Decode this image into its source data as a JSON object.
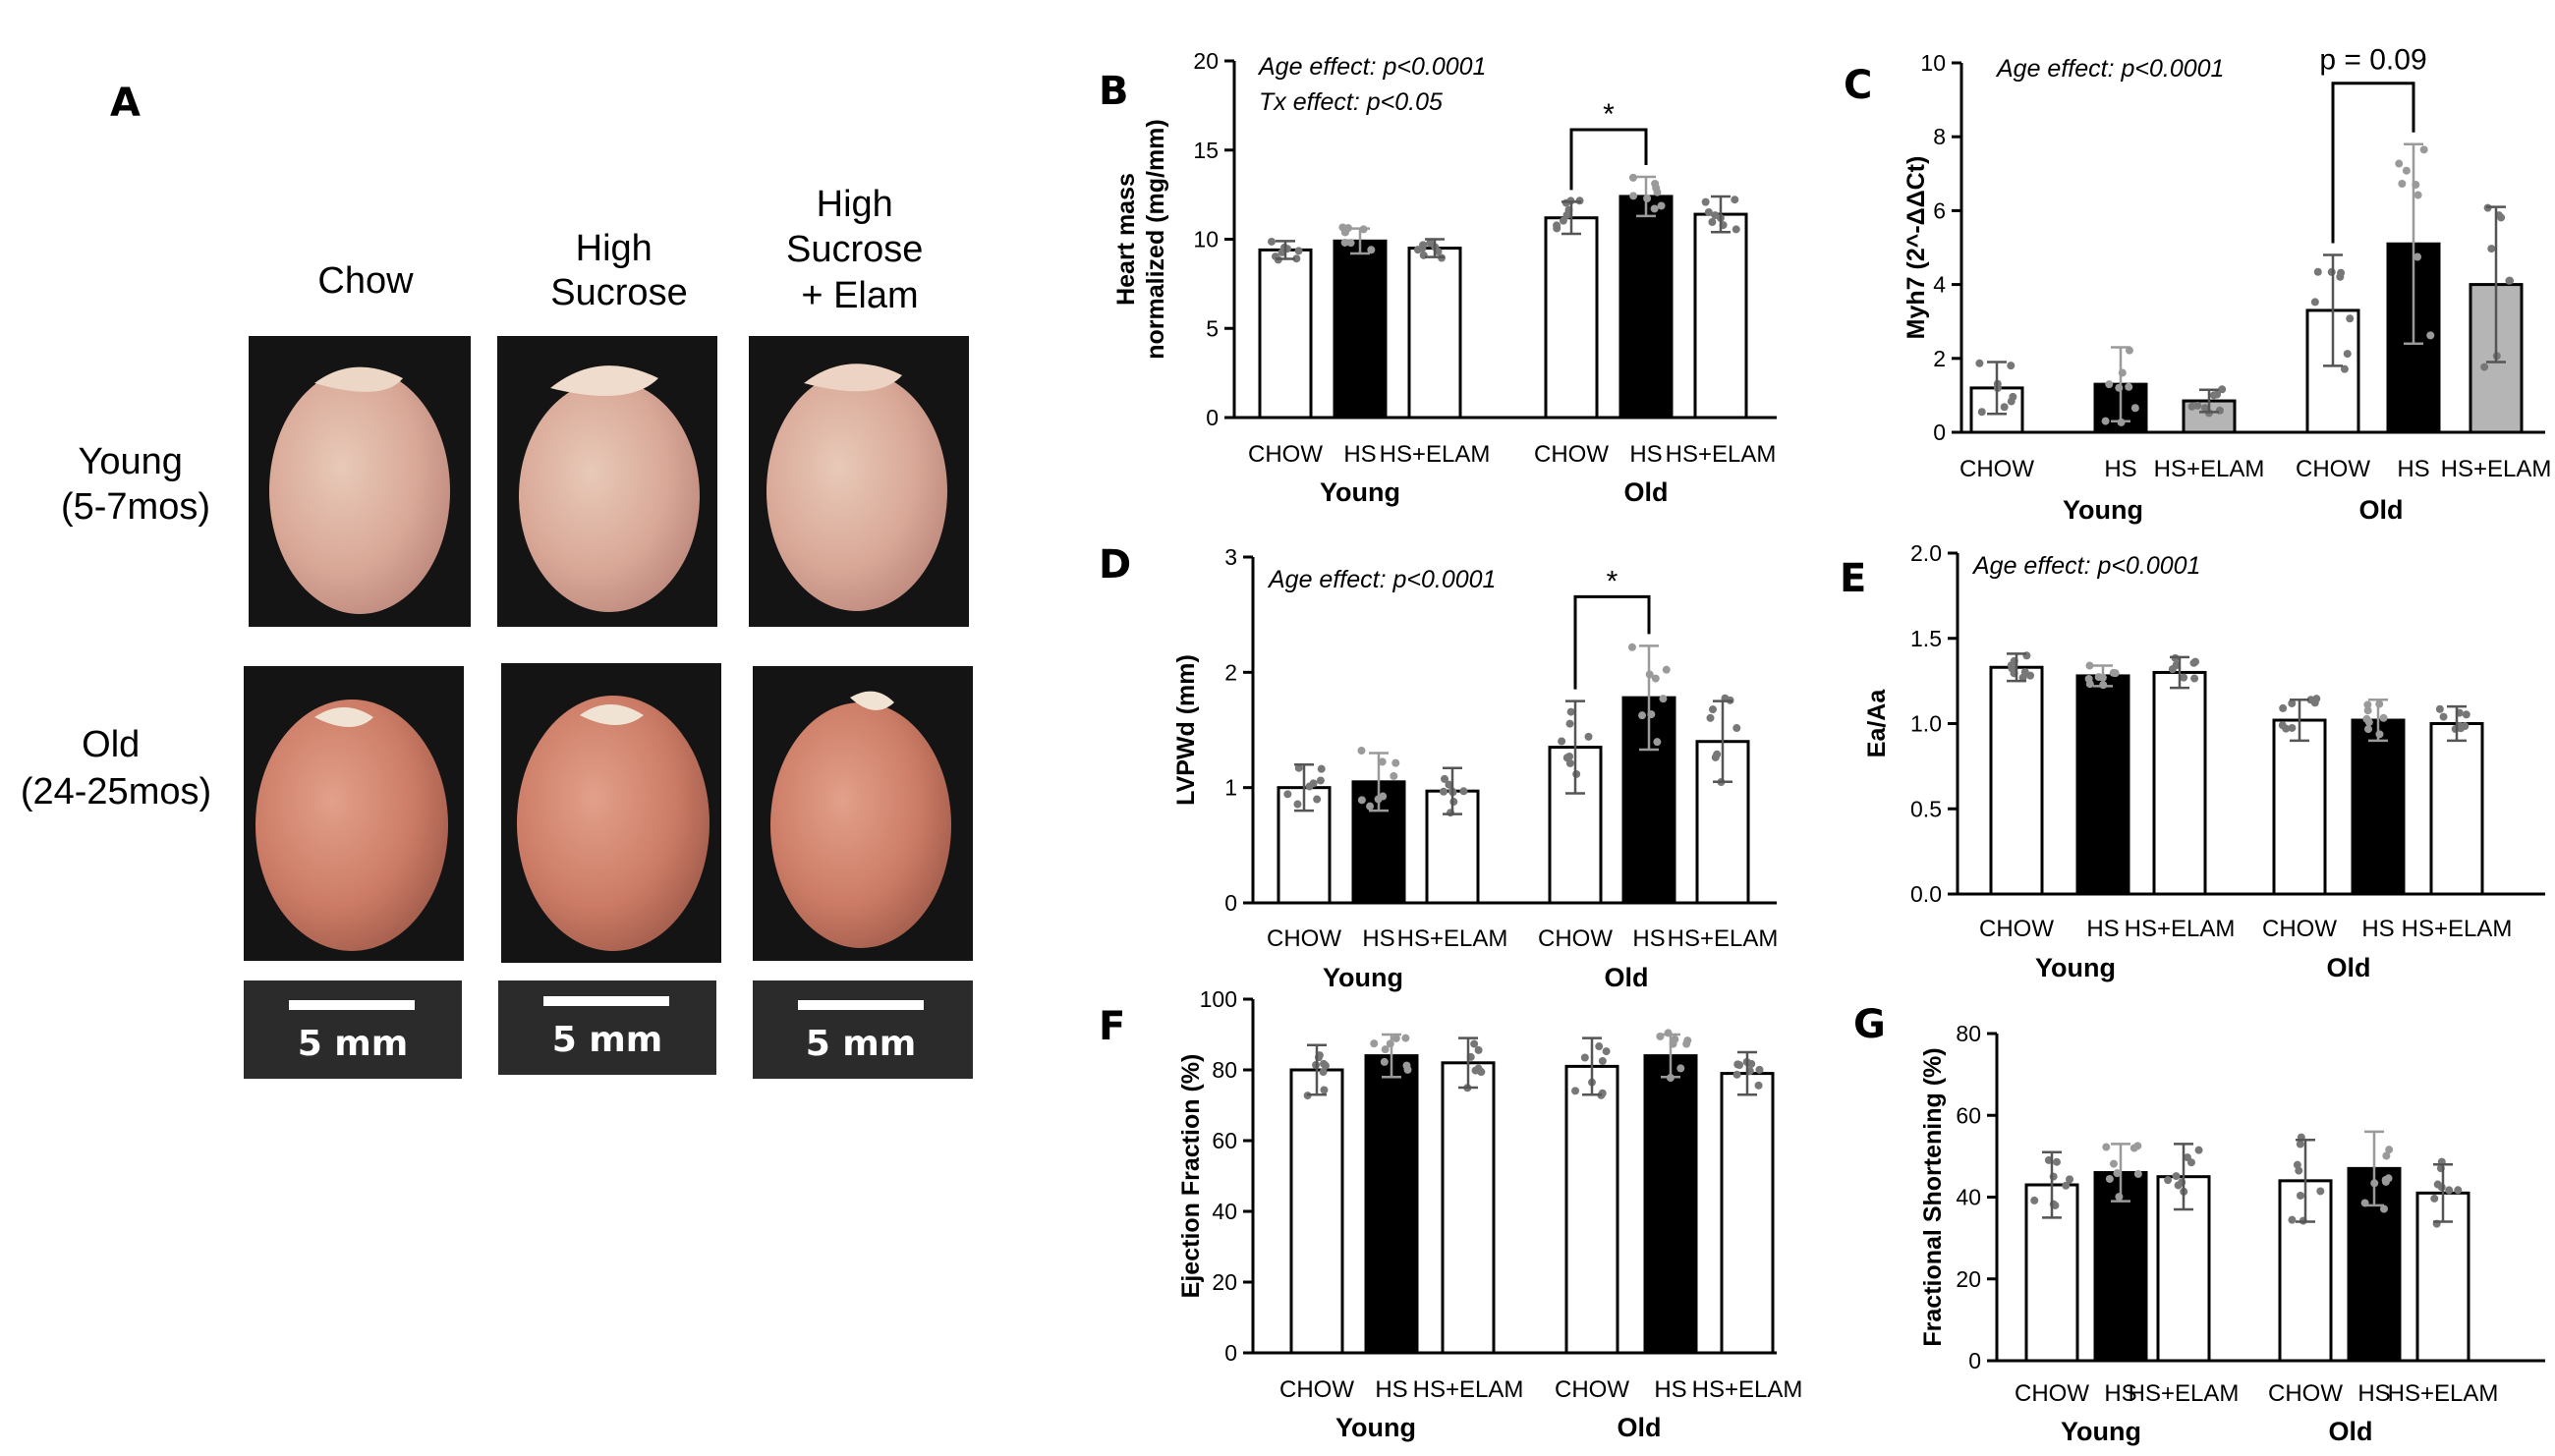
{
  "panel_a": {
    "letter": "A",
    "columns": [
      {
        "lines": [
          "Chow"
        ]
      },
      {
        "lines": [
          "High",
          "Sucrose"
        ]
      },
      {
        "lines": [
          "High",
          "Sucrose",
          "+ Elam"
        ]
      }
    ],
    "rows": [
      {
        "lines": [
          "Young",
          "(5-7mos)"
        ]
      },
      {
        "lines": [
          "Old",
          "(24-25mos)"
        ]
      }
    ],
    "scale_bar_label": "5 mm"
  },
  "colors": {
    "chow": "#ffffff",
    "hs": "#000000",
    "hs_elam_default": "#ffffff",
    "hs_elam_panel_c": "#b5b5b5",
    "points_gray": "#777777"
  },
  "chart_data": [
    {
      "id": "B",
      "type": "bar",
      "letter": "B",
      "ylabel": [
        "Heart mass",
        "normalized (mg/mm)"
      ],
      "ylim": [
        0,
        20
      ],
      "yticks": [
        0,
        5,
        10,
        15,
        20
      ],
      "categories": [
        "CHOW",
        "HS",
        "HS+ELAM",
        "CHOW",
        "HS",
        "HS+ELAM"
      ],
      "groups": [
        "Young",
        "Old"
      ],
      "values": [
        9.4,
        9.9,
        9.5,
        11.2,
        12.4,
        11.4
      ],
      "errors": [
        0.5,
        0.7,
        0.5,
        0.9,
        1.1,
        1.0
      ],
      "annotations": [
        "Age effect: p<0.0001",
        "Tx effect: p<0.05"
      ],
      "significance": {
        "label": "*",
        "between": [
          3,
          4
        ]
      }
    },
    {
      "id": "C",
      "type": "bar",
      "letter": "C",
      "ylabel": [
        "Myh7 (2^-ΔΔCt)"
      ],
      "ylim": [
        0,
        10
      ],
      "yticks": [
        0,
        2,
        4,
        6,
        8,
        10
      ],
      "categories": [
        "CHOW",
        "HS",
        "HS+ELAM",
        "CHOW",
        "HS",
        "HS+ELAM"
      ],
      "groups": [
        "Young",
        "Old"
      ],
      "values": [
        1.2,
        1.3,
        0.85,
        3.3,
        5.1,
        4.0
      ],
      "errors": [
        0.7,
        1.0,
        0.3,
        1.5,
        2.7,
        2.1
      ],
      "annotations": [
        "Age effect: p<0.0001"
      ],
      "significance": {
        "label": "p = 0.09",
        "between": [
          3,
          4
        ]
      }
    },
    {
      "id": "D",
      "type": "bar",
      "letter": "D",
      "ylabel": [
        "LVPWd (mm)"
      ],
      "ylim": [
        0,
        3
      ],
      "yticks": [
        0,
        1,
        2,
        3
      ],
      "categories": [
        "CHOW",
        "HS",
        "HS+ELAM",
        "CHOW",
        "HS",
        "HS+ELAM"
      ],
      "groups": [
        "Young",
        "Old"
      ],
      "values": [
        1.0,
        1.05,
        0.97,
        1.35,
        1.78,
        1.4
      ],
      "errors": [
        0.2,
        0.25,
        0.2,
        0.4,
        0.45,
        0.35
      ],
      "annotations": [
        "Age effect: p<0.0001"
      ],
      "significance": {
        "label": "*",
        "between": [
          3,
          4
        ]
      }
    },
    {
      "id": "E",
      "type": "bar",
      "letter": "E",
      "ylabel": [
        "Ea/Aa"
      ],
      "ylim": [
        0,
        2.0
      ],
      "yticks": [
        "0.0",
        "0.5",
        "1.0",
        "1.5",
        "2.0"
      ],
      "categories": [
        "CHOW",
        "HS",
        "HS+ELAM",
        "CHOW",
        "HS",
        "HS+ELAM"
      ],
      "groups": [
        "Young",
        "Old"
      ],
      "values": [
        1.33,
        1.28,
        1.3,
        1.02,
        1.02,
        1.0
      ],
      "errors": [
        0.08,
        0.06,
        0.09,
        0.12,
        0.12,
        0.1
      ],
      "annotations": [
        "Age effect: p<0.0001"
      ],
      "significance": null
    },
    {
      "id": "F",
      "type": "bar",
      "letter": "F",
      "ylabel": [
        "Ejection Fraction (%)"
      ],
      "ylim": [
        0,
        100
      ],
      "yticks": [
        0,
        20,
        40,
        60,
        80,
        100
      ],
      "categories": [
        "CHOW",
        "HS",
        "HS+ELAM",
        "CHOW",
        "HS",
        "HS+ELAM"
      ],
      "groups": [
        "Young",
        "Old"
      ],
      "values": [
        80,
        84,
        82,
        81,
        84,
        79
      ],
      "errors": [
        7,
        6,
        7,
        8,
        6,
        6
      ],
      "annotations": [],
      "significance": null
    },
    {
      "id": "G",
      "type": "bar",
      "letter": "G",
      "ylabel": [
        "Fractional Shortening (%)"
      ],
      "ylim": [
        0,
        80
      ],
      "yticks": [
        0,
        20,
        40,
        60,
        80
      ],
      "categories": [
        "CHOW",
        "HS",
        "HS+ELAM",
        "CHOW",
        "HS",
        "HS+ELAM"
      ],
      "groups": [
        "Young",
        "Old"
      ],
      "values": [
        43,
        46,
        45,
        44,
        47,
        41
      ],
      "errors": [
        8,
        7,
        8,
        10,
        9,
        7
      ],
      "annotations": [],
      "significance": null
    }
  ]
}
